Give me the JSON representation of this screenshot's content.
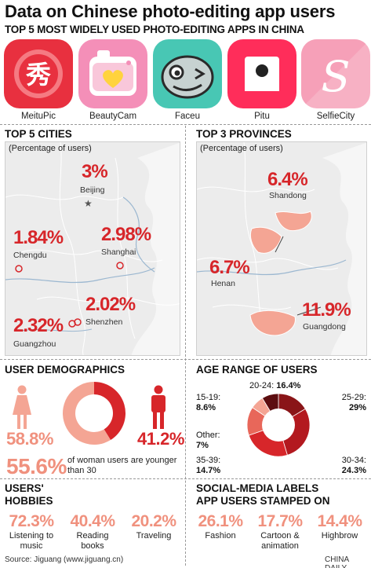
{
  "title": "Data on Chinese photo-editing app users",
  "subtitle": "TOP 5 MOST WIDELY USED PHOTO-EDITING APPS IN CHINA",
  "apps": [
    {
      "name": "MeituPic",
      "glyph": "秀"
    },
    {
      "name": "BeautyCam"
    },
    {
      "name": "Faceu"
    },
    {
      "name": "Pitu"
    },
    {
      "name": "SelfieCity",
      "glyph": "S"
    }
  ],
  "cities": {
    "heading": "TOP 5 CITIES",
    "note": "(Percentage of users)",
    "items": [
      {
        "name": "Beijing",
        "value": "3%"
      },
      {
        "name": "Chengdu",
        "value": "1.84%"
      },
      {
        "name": "Shanghai",
        "value": "2.98%"
      },
      {
        "name": "Shenzhen",
        "value": "2.02%"
      },
      {
        "name": "Guangzhou",
        "value": "2.32%"
      }
    ]
  },
  "provinces": {
    "heading": "TOP 3 PROVINCES",
    "note": "(Percentage of users)",
    "items": [
      {
        "name": "Shandong",
        "value": "6.4%"
      },
      {
        "name": "Henan",
        "value": "6.7%"
      },
      {
        "name": "Guangdong",
        "value": "11.9%"
      }
    ]
  },
  "demographics": {
    "heading": "USER DEMOGRAPHICS",
    "female_pct": "58.8%",
    "male_pct": "41.2%",
    "female_share": 0.588,
    "young_pct": "55.6%",
    "young_text": "of woman users are younger than 30"
  },
  "age_range": {
    "heading": "AGE RANGE OF USERS",
    "segments": [
      {
        "label": "20-24:",
        "value": "16.4%",
        "share": 16.4,
        "color": "#8a1518"
      },
      {
        "label": "25-29:",
        "value": "29%",
        "share": 29,
        "color": "#b3191f"
      },
      {
        "label": "30-34:",
        "value": "24.3%",
        "share": 24.3,
        "color": "#d7262a"
      },
      {
        "label": "35-39:",
        "value": "14.7%",
        "share": 14.7,
        "color": "#e8675a"
      },
      {
        "label": "Other:",
        "value": "7%",
        "share": 7,
        "color": "#f4a594"
      },
      {
        "label": "15-19:",
        "value": "8.6%",
        "share": 8.6,
        "color": "#5c0d10"
      }
    ]
  },
  "hobbies": {
    "heading_line1": "USERS'",
    "heading_line2": "HOBBIES",
    "items": [
      {
        "value": "72.3%",
        "label_line1": "Listening to",
        "label_line2": "music"
      },
      {
        "value": "40.4%",
        "label_line1": "Reading",
        "label_line2": "books"
      },
      {
        "value": "20.2%",
        "label_line1": "Traveling",
        "label_line2": ""
      }
    ]
  },
  "social": {
    "heading_line1": "SOCIAL-MEDIA LABELS",
    "heading_line2": "APP USERS STAMPED ON",
    "items": [
      {
        "value": "26.1%",
        "label_line1": "Fashion",
        "label_line2": ""
      },
      {
        "value": "17.7%",
        "label_line1": "Cartoon &",
        "label_line2": "animation"
      },
      {
        "value": "14.4%",
        "label_line1": "Highbrow",
        "label_line2": ""
      }
    ]
  },
  "footer": {
    "source": "Source: Jiguang (www.jiguang.cn)",
    "credit": "CHINA DAILY"
  }
}
